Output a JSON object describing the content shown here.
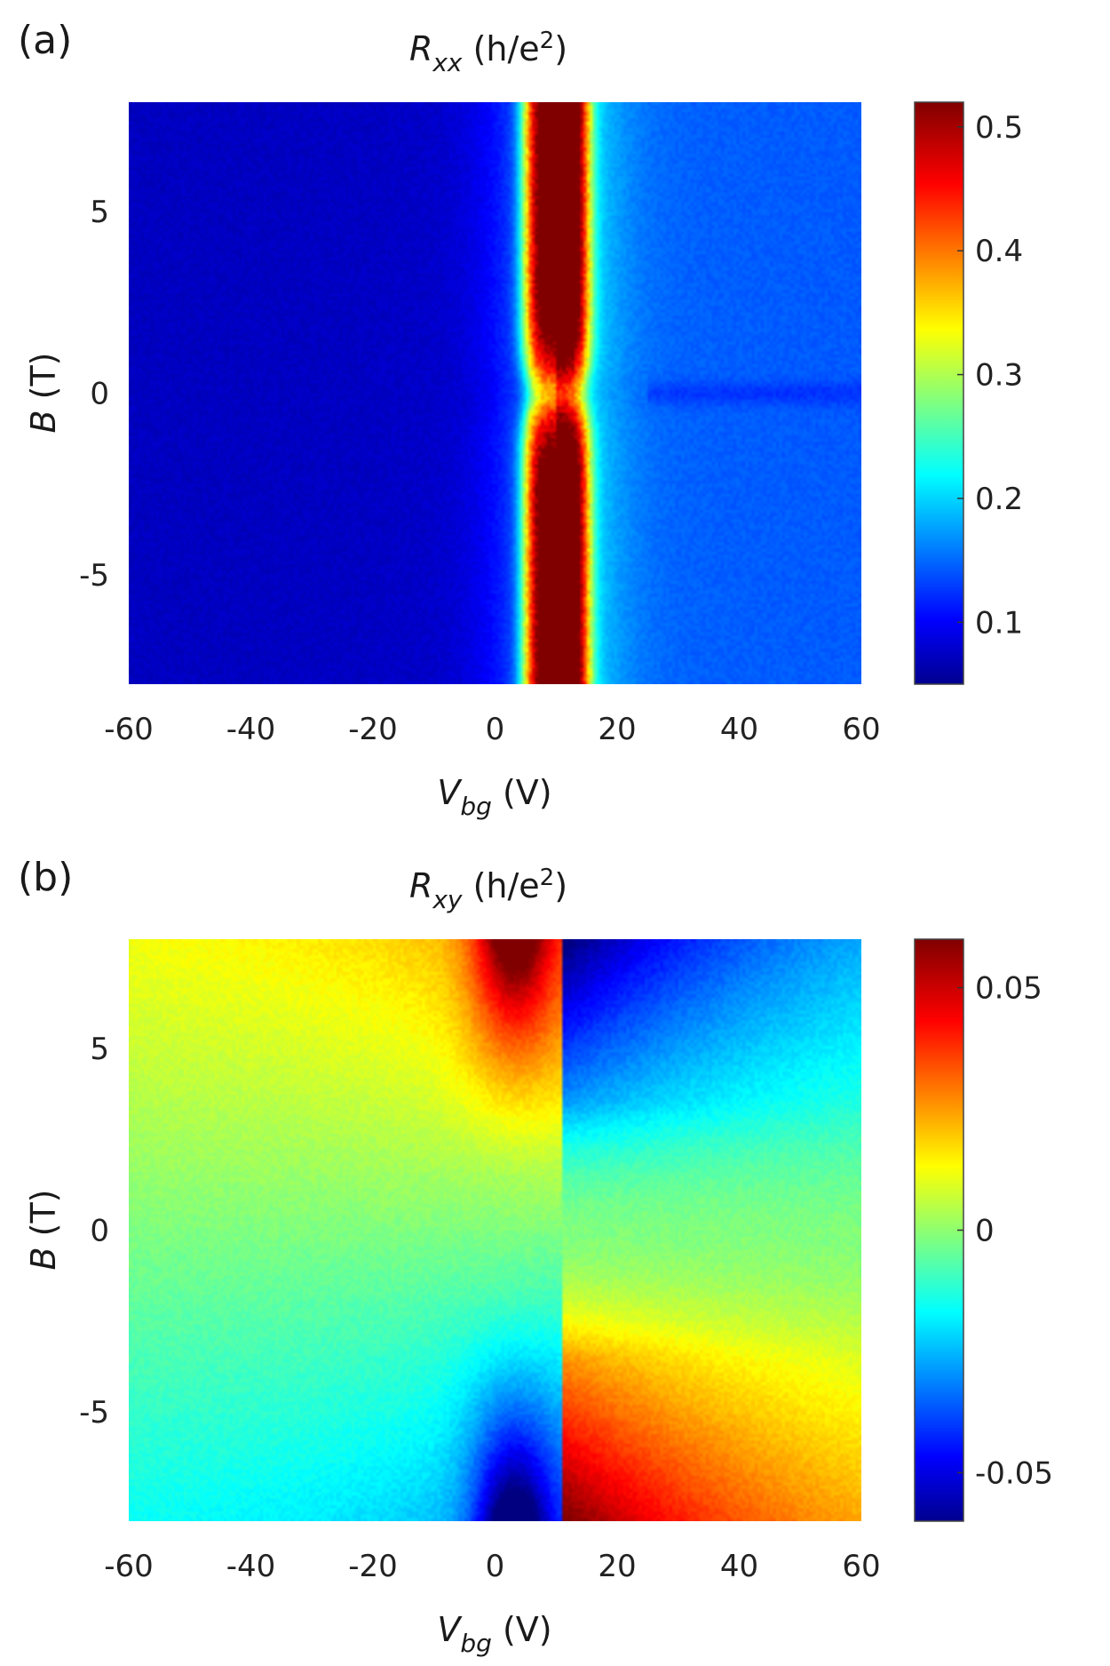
{
  "chart_data": [
    {
      "type": "heatmap",
      "panel": "(a)",
      "title": {
        "symbol": "R",
        "sub": "xx",
        "unit": " (h/e",
        "sup": "2",
        "close": ")"
      },
      "xlabel": {
        "symbol": "V",
        "sub": "bg",
        "unit": " (V)"
      },
      "ylabel": {
        "symbol": "B",
        "unit": " (T)"
      },
      "xlim": [
        -60,
        60
      ],
      "ylim": [
        -8,
        8
      ],
      "xticks": [
        -60,
        -40,
        -20,
        0,
        20,
        40,
        60
      ],
      "yticks": [
        5,
        0,
        -5
      ],
      "colorbar": {
        "range": [
          0.05,
          0.52
        ],
        "ticks": [
          0.5,
          0.4,
          0.3,
          0.2,
          0.1
        ],
        "colormap": "jet"
      },
      "features": {
        "charge_neutrality_V": 10,
        "peak_value_high_B": 0.47,
        "peak_value_zero_B": 0.29,
        "background_negative_V": 0.08,
        "background_positive_V": 0.15
      }
    },
    {
      "type": "heatmap",
      "panel": "(b)",
      "title": {
        "symbol": "R",
        "sub": "xy",
        "unit": " (h/e",
        "sup": "2",
        "close": ")"
      },
      "xlabel": {
        "symbol": "V",
        "sub": "bg",
        "unit": " (V)"
      },
      "ylabel": {
        "symbol": "B",
        "unit": " (T)"
      },
      "xlim": [
        -60,
        60
      ],
      "ylim": [
        -8,
        8
      ],
      "xticks": [
        -60,
        -40,
        -20,
        0,
        20,
        40,
        60
      ],
      "yticks": [
        5,
        0,
        -5
      ],
      "colorbar": {
        "range": [
          -0.06,
          0.06
        ],
        "ticks": [
          0.05,
          0,
          -0.05
        ],
        "colormap": "jet"
      },
      "features": {
        "sign_change_V": 11,
        "extreme_value": 0.055,
        "antisymmetric_in_B": true
      }
    }
  ]
}
